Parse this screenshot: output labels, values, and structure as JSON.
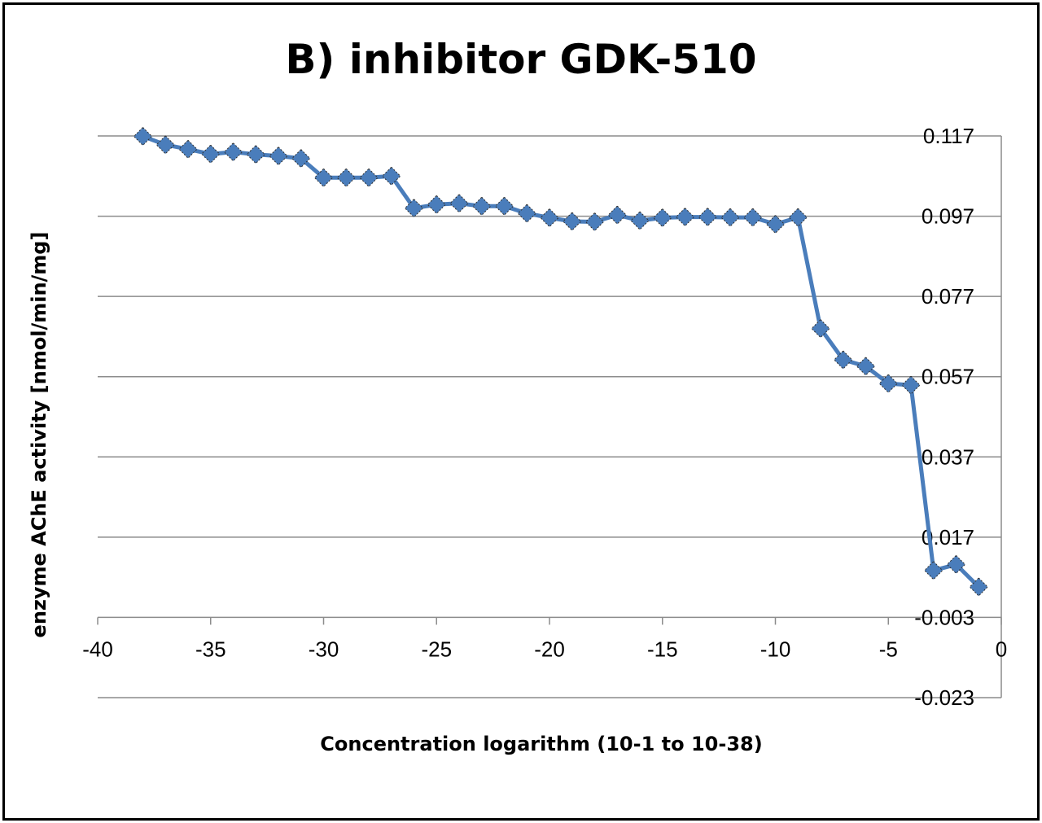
{
  "chart_data": {
    "type": "line",
    "title": "B) inhibitor GDK-510",
    "xlabel": "Concentration logarithm (10-1 to 10-38)",
    "ylabel": "enzyme AChE activity [nmol/min/mg]",
    "xlim": [
      -40,
      0
    ],
    "ylim": [
      -0.023,
      0.117
    ],
    "x_ticks": [
      "-40",
      "-35",
      "-30",
      "-25",
      "-20",
      "-15",
      "-10",
      "-5",
      "0"
    ],
    "y_ticks": [
      "0.117",
      "0.097",
      "0.077",
      "0.057",
      "0.037",
      "0.017",
      "-0.003",
      "-0.023"
    ],
    "y_axis_position": "right",
    "x_axis_crosses_at": -0.003,
    "grid": "horizontal",
    "legend": "none",
    "series": [
      {
        "color": "#4a7dbb",
        "marker": "diamond",
        "x": [
          -38,
          -37,
          -36,
          -35,
          -34,
          -33,
          -32,
          -31,
          -30,
          -29,
          -28,
          -27,
          -26,
          -25,
          -24,
          -23,
          -22,
          -21,
          -20,
          -19,
          -18,
          -17,
          -16,
          -15,
          -14,
          -13,
          -12,
          -11,
          -10,
          -9,
          -8,
          -7,
          -6,
          -5,
          -4,
          -3,
          -2,
          -1
        ],
        "y": [
          0.1169,
          0.1148,
          0.1137,
          0.1125,
          0.113,
          0.1124,
          0.112,
          0.1114,
          0.1066,
          0.1066,
          0.1066,
          0.107,
          0.099,
          0.0999,
          0.1002,
          0.0995,
          0.0995,
          0.0977,
          0.0966,
          0.0957,
          0.0956,
          0.0973,
          0.0959,
          0.0966,
          0.0968,
          0.0968,
          0.0967,
          0.0967,
          0.095,
          0.0967,
          0.069,
          0.0612,
          0.0596,
          0.0553,
          0.0549,
          0.0087,
          0.0102,
          0.0046
        ]
      }
    ]
  }
}
